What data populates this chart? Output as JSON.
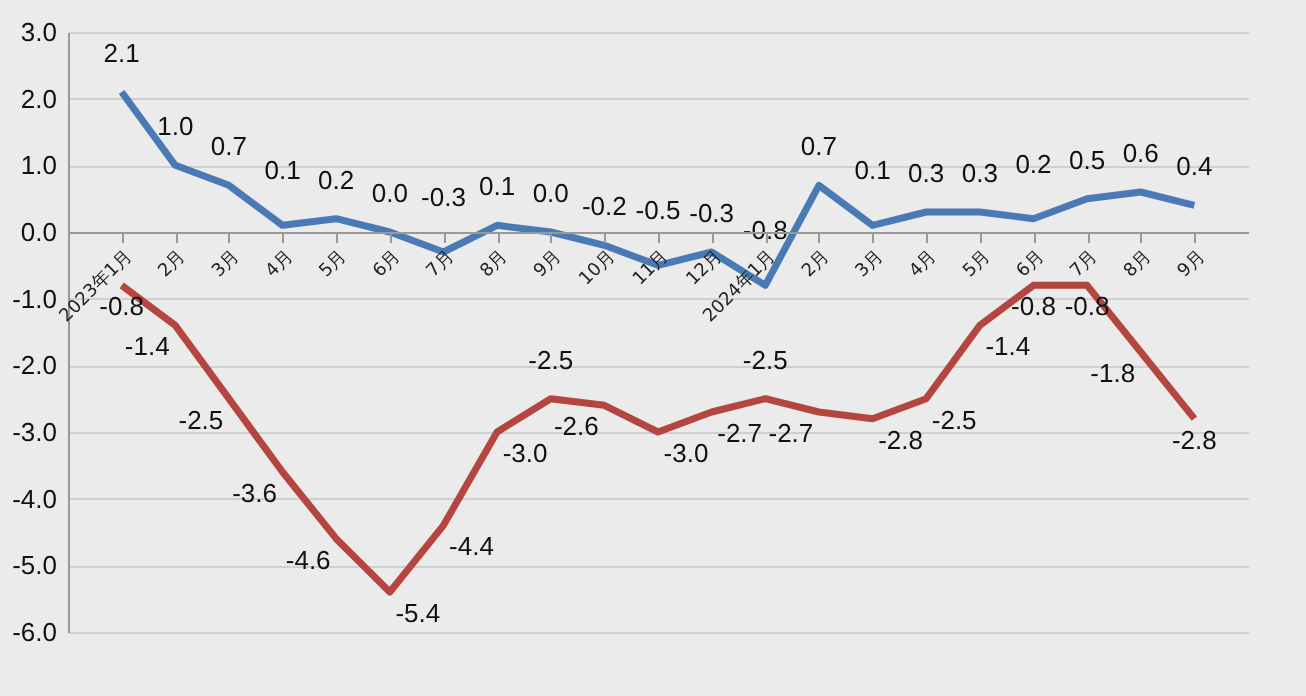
{
  "chart_data": {
    "type": "line",
    "categories": [
      "2023年1月",
      "2月",
      "3月",
      "4月",
      "5月",
      "6月",
      "7月",
      "8月",
      "9月",
      "10月",
      "11月",
      "12月",
      "2024年1月",
      "2月",
      "3月",
      "4月",
      "5月",
      "6月",
      "7月",
      "8月",
      "9月"
    ],
    "series": [
      {
        "color": "#4a7ab5",
        "values": [
          2.1,
          1.0,
          0.7,
          0.1,
          0.2,
          0.0,
          -0.3,
          0.1,
          0.0,
          -0.2,
          -0.5,
          -0.3,
          -0.8,
          0.7,
          0.1,
          0.3,
          0.3,
          0.2,
          0.5,
          0.6,
          0.4
        ],
        "value_labels": [
          "2.1",
          "1.0",
          "0.7",
          "0.1",
          "0.2",
          "0.0",
          "-0.3",
          "0.1",
          "0.0",
          "-0.2",
          "-0.5",
          "-0.3",
          "-0.8",
          "0.7",
          "0.1",
          "0.3",
          "0.3",
          "0.2",
          "0.5",
          "0.6",
          "0.4"
        ]
      },
      {
        "color": "#b5453f",
        "values": [
          -0.8,
          -1.4,
          -2.5,
          -3.6,
          -4.6,
          -5.4,
          -4.4,
          -3.0,
          -2.5,
          -2.6,
          -3.0,
          -2.7,
          -2.5,
          -2.7,
          -2.8,
          -2.5,
          -1.4,
          -0.8,
          -0.8,
          -1.8,
          -2.8
        ],
        "value_labels": [
          "-0.8",
          "-1.4",
          "-2.5",
          "-3.6",
          "-4.6",
          "-5.4",
          "-4.4",
          "-3.0",
          "-2.5",
          "-2.6",
          "-3.0",
          "-2.7",
          "-2.5",
          "-2.7",
          "-2.8",
          "-2.5",
          "-1.4",
          "-0.8",
          "-0.8",
          "-1.8",
          "-2.8"
        ]
      }
    ],
    "ylim": [
      -6,
      3
    ],
    "yticks": [
      {
        "value": -6,
        "label": "-6.0"
      },
      {
        "value": -5,
        "label": "-5.0"
      },
      {
        "value": -4,
        "label": "-4.0"
      },
      {
        "value": -3,
        "label": "-3.0"
      },
      {
        "value": -2,
        "label": "-2.0"
      },
      {
        "value": -1,
        "label": "-1.0"
      },
      {
        "value": 0,
        "label": "0.0"
      },
      {
        "value": 1,
        "label": "1.0"
      },
      {
        "value": 2,
        "label": "2.0"
      },
      {
        "value": 3,
        "label": "3.0"
      }
    ],
    "grid": "y",
    "marker": "none",
    "line_style": "solid"
  }
}
